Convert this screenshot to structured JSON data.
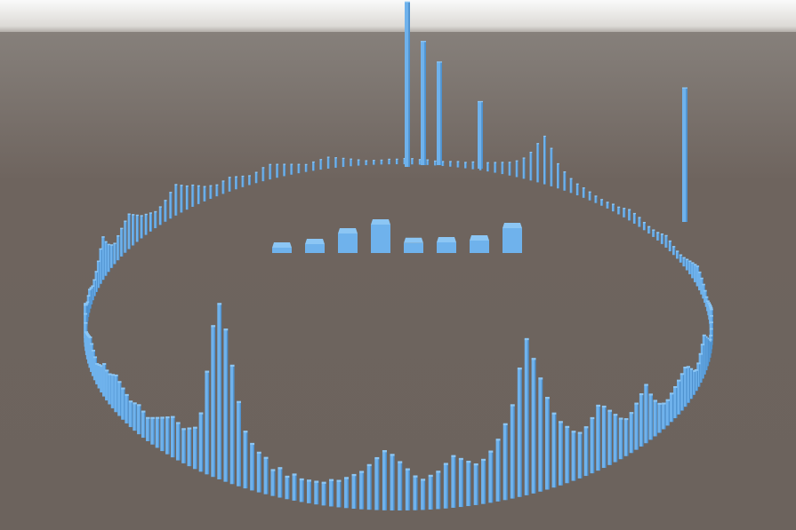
{
  "scene": {
    "title": "",
    "colors": {
      "bar_top": "#8cc6f4",
      "bar_front": "#6fb2ec",
      "bar_side": "#4f92cf",
      "sky": "#f2f2f2",
      "ground": "#6e645e"
    }
  },
  "chart_data": {
    "type": "bar",
    "title": "",
    "center_bands": {
      "values": [
        0.15,
        0.25,
        0.55,
        0.8,
        0.28,
        0.3,
        0.35,
        0.7
      ]
    },
    "ring": {
      "count": 256,
      "angles_from_front_deg_amplitudes": [
        0.1,
        0.12,
        0.1,
        0.14,
        0.12,
        0.18,
        0.2,
        0.24,
        0.3,
        0.46,
        0.66,
        0.86,
        1.0,
        0.86,
        0.58,
        0.32,
        0.22,
        0.2,
        0.18,
        0.2,
        0.22,
        0.2,
        0.18,
        0.16,
        0.14,
        0.12,
        0.14,
        0.16,
        0.15,
        0.14,
        0.16,
        0.18,
        0.2,
        0.22,
        0.2,
        0.18,
        0.18,
        0.2,
        0.16,
        0.14,
        0.12,
        0.14,
        0.16,
        0.18,
        0.2,
        0.18,
        0.16,
        0.14,
        0.12,
        0.16,
        0.2,
        0.24,
        0.22,
        0.18,
        0.14,
        0.12,
        0.1,
        0.12,
        0.14,
        0.12,
        0.1,
        0.12,
        0.16,
        0.22,
        0.3,
        0.38,
        0.3,
        0.24,
        0.2,
        0.18,
        0.22,
        0.26,
        0.3,
        0.34,
        0.3,
        0.26,
        0.22,
        0.2,
        0.18,
        0.16,
        0.18,
        0.22,
        0.28,
        0.34,
        0.3,
        0.26,
        0.24,
        0.2,
        0.16,
        0.14,
        0.12,
        0.14,
        0.16,
        0.14,
        0.12,
        0.1,
        0.12,
        0.16,
        0.18,
        0.16,
        0.14,
        0.12,
        0.1,
        0.08,
        0.1,
        0.12,
        0.14,
        0.12,
        0.1,
        0.08,
        0.06,
        0.04,
        0.04,
        0.04,
        0.05,
        0.05,
        0.06,
        0.06,
        0.05,
        0.05,
        0.04,
        0.04,
        0.05,
        0.06,
        0.06,
        0.08,
        0.08,
        0.1,
        0.12,
        0.14,
        0.16,
        0.2,
        0.26,
        0.36,
        0.5,
        0.62,
        0.48,
        0.3,
        0.22,
        0.16,
        0.12,
        0.1,
        0.08,
        0.06,
        0.05,
        0.05,
        0.06,
        0.06,
        0.08,
        0.1,
        0.09,
        0.08,
        0.06,
        0.05,
        0.05,
        0.06,
        0.08,
        0.1,
        0.08,
        0.06,
        0.05,
        0.05,
        0.06,
        0.08,
        0.1,
        0.12,
        0.14,
        0.16,
        0.14,
        0.12,
        0.1,
        0.08,
        0.06,
        0.06,
        0.08,
        0.1,
        0.12,
        0.14,
        0.16,
        0.14,
        0.12,
        0.1,
        0.08,
        0.08,
        0.1,
        0.14,
        0.18,
        0.22,
        0.26,
        0.22,
        0.18,
        0.14,
        0.12,
        0.14,
        0.18,
        0.22,
        0.24,
        0.22,
        0.2,
        0.18,
        0.16,
        0.14,
        0.14,
        0.16,
        0.2,
        0.26,
        0.34,
        0.3,
        0.26,
        0.22,
        0.2,
        0.22,
        0.26,
        0.3,
        0.34,
        0.36,
        0.3,
        0.26,
        0.24,
        0.26,
        0.3,
        0.34,
        0.4,
        0.5,
        0.62,
        0.74,
        0.86,
        0.7,
        0.5,
        0.4,
        0.32,
        0.26,
        0.22,
        0.2,
        0.22,
        0.24,
        0.26,
        0.22,
        0.18,
        0.16,
        0.14,
        0.16,
        0.2,
        0.24,
        0.28,
        0.3,
        0.26,
        0.22,
        0.18,
        0.16,
        0.14,
        0.12,
        0.12,
        0.1,
        0.1,
        0.1
      ],
      "back_spikes_amplitudes": [
        3.2,
        2.4,
        2.0,
        1.3,
        2.6
      ]
    }
  }
}
